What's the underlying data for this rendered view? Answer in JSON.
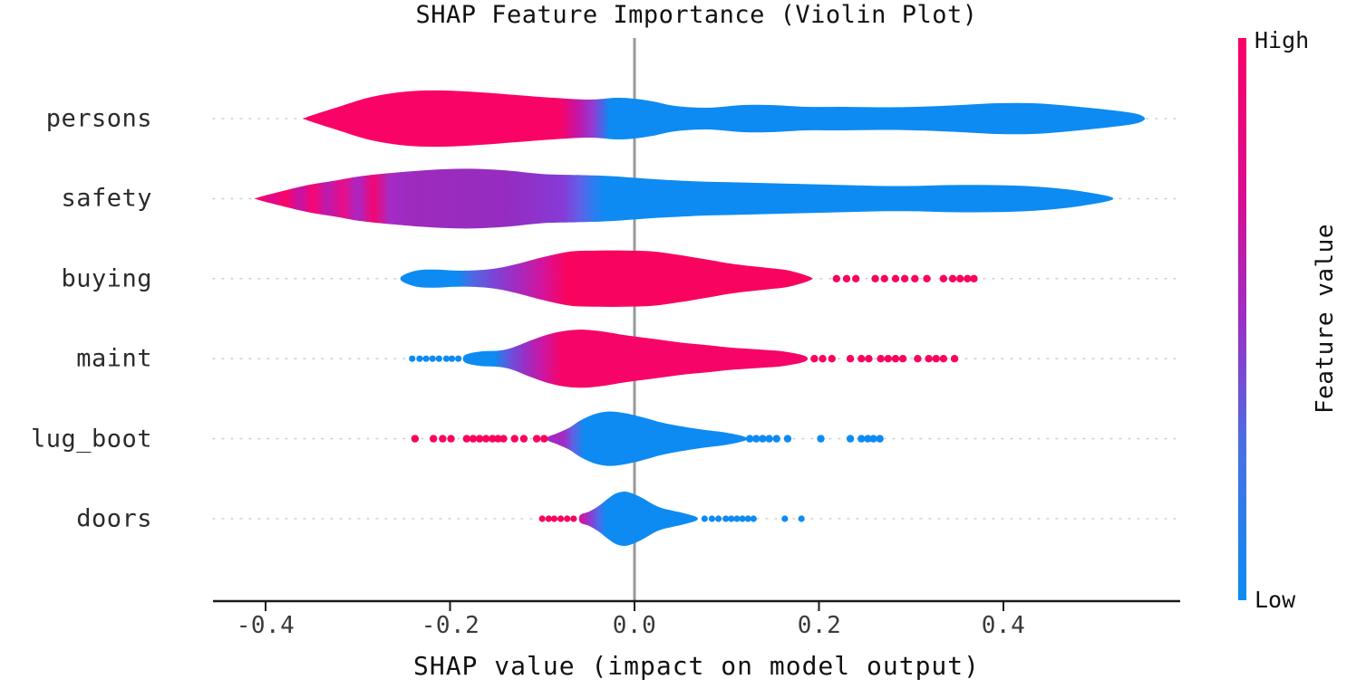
{
  "chart_data": {
    "type": "violin",
    "title": "SHAP Feature Importance (Violin Plot)",
    "xlabel": "SHAP value (impact on model output)",
    "x_ticks": [
      -0.4,
      -0.2,
      0.0,
      0.2,
      0.4
    ],
    "xtick_labels": [
      "-0.4",
      "-0.2",
      "0.0",
      "0.2",
      "0.4"
    ],
    "xlim": [
      -0.457,
      0.592
    ],
    "legend_position": "right-colorbar",
    "grid": "dotted-horizontal",
    "colors": {
      "high": "#fa0366",
      "low": "#0d8bf2",
      "mid_purple": "#9c2fc4",
      "zero_line": "#999999",
      "gridline": "#d2d2d2",
      "axis": "#1a1a1a",
      "text": "#111111"
    },
    "colorbar": {
      "title": "Feature value",
      "high_label": "High",
      "low_label": "Low",
      "stops": [
        [
          0,
          "#fa0266"
        ],
        [
          0.28,
          "#d90e90"
        ],
        [
          0.5,
          "#9c2fc4"
        ],
        [
          0.72,
          "#4b6ee2"
        ],
        [
          1,
          "#0b8cf4"
        ]
      ]
    },
    "features": [
      {
        "name": "persons",
        "violin": {
          "x": [
            -0.357,
            -0.324,
            -0.285,
            -0.246,
            -0.206,
            -0.167,
            -0.128,
            -0.088,
            -0.049,
            -0.02,
            0.0,
            0.02,
            0.044,
            0.079,
            0.118,
            0.147,
            0.187,
            0.226,
            0.265,
            0.305,
            0.354,
            0.393,
            0.432,
            0.472,
            0.511,
            0.541,
            0.552
          ],
          "hw": [
            1,
            12,
            24,
            30,
            31,
            29,
            26,
            23,
            21,
            23,
            22,
            19,
            14,
            12,
            15,
            15,
            13,
            13,
            12.5,
            13,
            15,
            17,
            17,
            14,
            10,
            6,
            2
          ]
        },
        "gradient": [
          [
            -0.357,
            "#fa0366"
          ],
          [
            -0.081,
            "#fa0366"
          ],
          [
            -0.061,
            "#c315a8"
          ],
          [
            -0.044,
            "#8d3ed6"
          ],
          [
            -0.027,
            "#0d8bf2"
          ],
          [
            0.552,
            "#0d8bf2"
          ]
        ],
        "dots": []
      },
      {
        "name": "safety",
        "violin": {
          "x": [
            -0.409,
            -0.383,
            -0.354,
            -0.324,
            -0.295,
            -0.256,
            -0.216,
            -0.177,
            -0.138,
            -0.098,
            -0.059,
            -0.029,
            0.0,
            0.029,
            0.069,
            0.108,
            0.147,
            0.187,
            0.226,
            0.265,
            0.305,
            0.344,
            0.383,
            0.423,
            0.462,
            0.491,
            0.516
          ],
          "hw": [
            1,
            8,
            15,
            20,
            25,
            29,
            32,
            33,
            31,
            27,
            26,
            25,
            23,
            21,
            19,
            18,
            17,
            16,
            15,
            14,
            14,
            15,
            15,
            14,
            11,
            7,
            2
          ]
        },
        "gradient": [
          [
            -0.409,
            "#fc0366"
          ],
          [
            -0.393,
            "#e00a8a"
          ],
          [
            -0.378,
            "#fc0366"
          ],
          [
            -0.363,
            "#c214a6"
          ],
          [
            -0.348,
            "#fa0570"
          ],
          [
            -0.334,
            "#b81bb2"
          ],
          [
            -0.316,
            "#e90d85"
          ],
          [
            -0.3,
            "#a827c6"
          ],
          [
            -0.283,
            "#f20670"
          ],
          [
            -0.265,
            "#a52bc9"
          ],
          [
            -0.241,
            "#9d2bbd"
          ],
          [
            -0.138,
            "#952cc1"
          ],
          [
            -0.079,
            "#8739d6"
          ],
          [
            -0.059,
            "#5f61e8"
          ],
          [
            -0.044,
            "#2b7df0"
          ],
          [
            -0.031,
            "#0d8bf2"
          ],
          [
            0.516,
            "#0d8bf2"
          ]
        ],
        "dots": []
      },
      {
        "name": "buying",
        "violin": {
          "x": [
            -0.252,
            -0.236,
            -0.216,
            -0.197,
            -0.177,
            -0.152,
            -0.128,
            -0.098,
            -0.069,
            -0.039,
            -0.01,
            0.02,
            0.049,
            0.079,
            0.108,
            0.143,
            0.167,
            0.19
          ],
          "hw": [
            3,
            9,
            10,
            9,
            9,
            11,
            16,
            24,
            30,
            31,
            31,
            30,
            26,
            21,
            16,
            12,
            9,
            2
          ]
        },
        "gradient": [
          [
            -0.252,
            "#0d8bf2"
          ],
          [
            -0.192,
            "#0d8bf2"
          ],
          [
            -0.177,
            "#4b6ae5"
          ],
          [
            -0.152,
            "#7d43d6"
          ],
          [
            -0.128,
            "#a32bc0"
          ],
          [
            -0.098,
            "#d6129a"
          ],
          [
            -0.074,
            "#f8045f"
          ],
          [
            0.19,
            "#f8045f"
          ]
        ],
        "dots": [
          {
            "color": "#f8035e",
            "r": 4.2,
            "x": [
              0.219,
              0.23,
              0.24,
              0.261,
              0.271,
              0.283,
              0.293,
              0.304,
              0.317,
              0.335,
              0.345,
              0.353,
              0.361,
              0.368
            ]
          }
        ]
      },
      {
        "name": "maint",
        "violin": {
          "x": [
            -0.184,
            -0.167,
            -0.147,
            -0.133,
            -0.113,
            -0.093,
            -0.074,
            -0.054,
            -0.034,
            -0.01,
            0.02,
            0.049,
            0.079,
            0.108,
            0.138,
            0.162,
            0.185
          ],
          "hw": [
            4,
            8,
            9,
            12,
            20,
            27,
            31,
            32,
            30,
            26,
            22,
            18,
            15,
            12,
            10,
            8,
            3
          ]
        },
        "gradient": [
          [
            -0.184,
            "#0d8bf2"
          ],
          [
            -0.152,
            "#0d8bf2"
          ],
          [
            -0.136,
            "#6655dd"
          ],
          [
            -0.118,
            "#9c2dc2"
          ],
          [
            -0.098,
            "#cf149f"
          ],
          [
            -0.079,
            "#f70468"
          ],
          [
            0.185,
            "#f70468"
          ]
        ],
        "dots": [
          {
            "color": "#0d8bf2",
            "r": 3.6,
            "x": [
              -0.241,
              -0.233,
              -0.226,
              -0.219,
              -0.212,
              -0.204,
              -0.198,
              -0.191
            ]
          },
          {
            "color": "#f8035e",
            "r": 4.2,
            "x": [
              0.195,
              0.204,
              0.214,
              0.234,
              0.246,
              0.254,
              0.267,
              0.275,
              0.283,
              0.291,
              0.307,
              0.319,
              0.327,
              0.335,
              0.347
            ]
          }
        ]
      },
      {
        "name": "lug_boot",
        "violin": {
          "x": [
            -0.094,
            -0.084,
            -0.071,
            -0.059,
            -0.044,
            -0.029,
            -0.015,
            0.0,
            0.015,
            0.029,
            0.049,
            0.074,
            0.098,
            0.12
          ],
          "hw": [
            2,
            6,
            12,
            20,
            27,
            30,
            29,
            26,
            22,
            18,
            14,
            10,
            7,
            2
          ]
        },
        "gradient": [
          [
            -0.094,
            "#a428c4"
          ],
          [
            -0.077,
            "#a428c4"
          ],
          [
            -0.067,
            "#5e63e2"
          ],
          [
            -0.054,
            "#0d8bf2"
          ],
          [
            0.12,
            "#0d8bf2"
          ]
        ],
        "dots": [
          {
            "color": "#f8035e",
            "r": 4.2,
            "x": [
              -0.238,
              -0.218,
              -0.208,
              -0.199,
              -0.182,
              -0.175,
              -0.168,
              -0.161,
              -0.154,
              -0.148,
              -0.142,
              -0.13,
              -0.12,
              -0.106,
              -0.098
            ]
          },
          {
            "color": "#0d8bf2",
            "r": 4.2,
            "x": [
              0.125,
              0.132,
              0.139,
              0.146,
              0.154,
              0.166,
              0.202,
              0.234,
              0.246,
              0.253,
              0.259,
              0.266
            ]
          }
        ]
      },
      {
        "name": "doors",
        "violin": {
          "x": [
            -0.059,
            -0.049,
            -0.039,
            -0.029,
            -0.02,
            -0.01,
            0.0,
            0.01,
            0.02,
            0.029,
            0.041,
            0.054,
            0.067
          ],
          "hw": [
            4,
            8,
            14,
            22,
            28,
            30,
            27,
            22,
            16,
            12,
            9,
            6,
            2
          ]
        },
        "gradient": [
          [
            -0.059,
            "#d9119a"
          ],
          [
            -0.051,
            "#a42bc9"
          ],
          [
            -0.039,
            "#4f6ae8"
          ],
          [
            -0.031,
            "#0d8bf2"
          ],
          [
            0.067,
            "#0d8bf2"
          ]
        ],
        "dots": [
          {
            "color": "#f8035e",
            "r": 3.6,
            "x": [
              -0.1,
              -0.093,
              -0.087,
              -0.08,
              -0.073,
              -0.066
            ]
          },
          {
            "color": "#0d8bf2",
            "r": 3.6,
            "x": [
              0.076,
              0.084,
              0.091,
              0.099,
              0.105,
              0.111,
              0.117,
              0.123,
              0.129,
              0.163,
              0.181
            ]
          }
        ]
      }
    ]
  }
}
